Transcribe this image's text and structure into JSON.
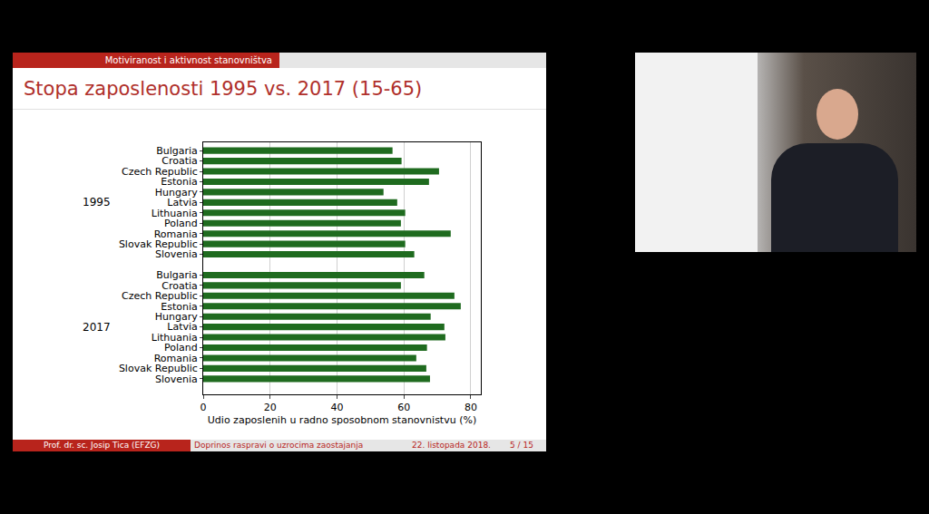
{
  "slide": {
    "header": "Motiviranost i aktivnost stanovništva",
    "title": "Stopa zaposlenosti 1995 vs. 2017 (15-65)",
    "footer": {
      "author": "Prof. dr. sc. Josip Tica (EFZG)",
      "talk": "Doprinos raspravi o uzrocima zaostajanja",
      "date": "22. listopada 2018.",
      "page": "5 / 15"
    }
  },
  "chart_data": {
    "type": "bar",
    "orientation": "horizontal",
    "color": "#1f6b1f",
    "grid": true,
    "xlabel": "Udio zaposlenih u radno sposobnom stanovnistvu (%)",
    "xlim": [
      0,
      83
    ],
    "xticks": [
      0,
      20,
      40,
      60,
      80
    ],
    "groups": [
      {
        "label": "1995",
        "categories": [
          "Bulgaria",
          "Croatia",
          "Czech Republic",
          "Estonia",
          "Hungary",
          "Latvia",
          "Lithuania",
          "Poland",
          "Romania",
          "Slovak Republic",
          "Slovenia"
        ],
        "values": [
          56.6,
          59.3,
          70.5,
          67.5,
          53.9,
          58,
          60.4,
          59.1,
          74,
          60.4,
          63.1
        ]
      },
      {
        "label": "2017",
        "categories": [
          "Bulgaria",
          "Croatia",
          "Czech Republic",
          "Estonia",
          "Hungary",
          "Latvia",
          "Lithuania",
          "Poland",
          "Romania",
          "Slovak Republic",
          "Slovenia"
        ],
        "values": [
          66.1,
          59.1,
          75.1,
          77,
          68,
          72.1,
          72.4,
          66.9,
          63.7,
          66.7,
          67.8
        ]
      }
    ]
  }
}
